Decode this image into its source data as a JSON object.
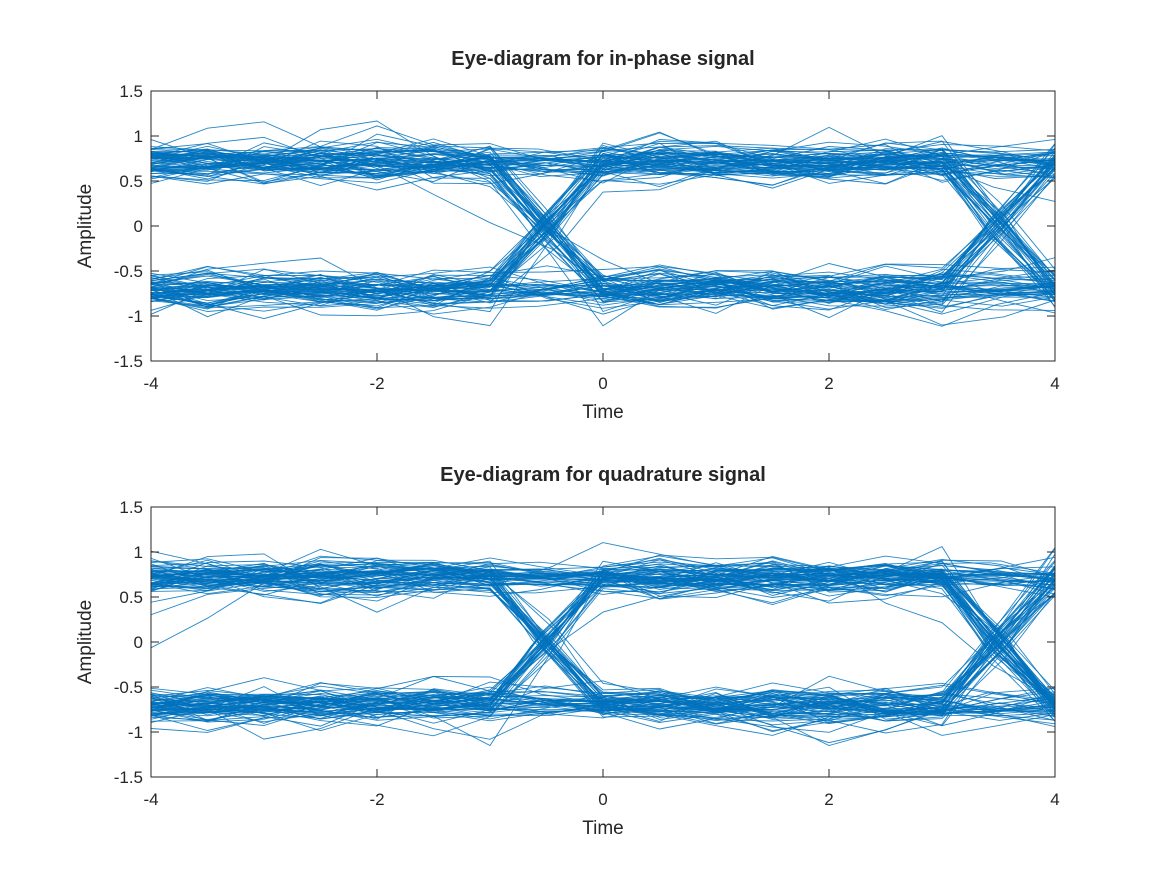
{
  "figure": {
    "background": "#ffffff"
  },
  "chart_data": [
    {
      "type": "line",
      "chart_kind": "eye-diagram",
      "title": "Eye-diagram for in-phase signal",
      "xlabel": "Time",
      "ylabel": "Amplitude",
      "xlim": [
        -4,
        4
      ],
      "ylim": [
        -1.5,
        1.5
      ],
      "xticks": [
        -4,
        -2,
        0,
        2,
        4
      ],
      "yticks": [
        -1.5,
        -1,
        -0.5,
        0,
        0.5,
        1,
        1.5
      ],
      "xtick_labels": [
        "-4",
        "-2",
        "0",
        "2",
        "4"
      ],
      "ytick_labels": [
        "-1.5",
        "-1",
        "-0.5",
        "0",
        "0.5",
        "1",
        "1.5"
      ],
      "grid": false,
      "line_color": "#0072BD",
      "symbol_times": [
        -4,
        -3,
        -2,
        -1,
        0,
        1,
        2,
        3,
        4
      ],
      "levels": [
        -0.707,
        0.707
      ],
      "level_spread": 0.18,
      "extreme_values": [
        -1.3,
        1.2
      ],
      "crossing_times": [
        -0.5,
        3.5
      ],
      "trace_count": 140,
      "seed": 11
    },
    {
      "type": "line",
      "chart_kind": "eye-diagram",
      "title": "Eye-diagram for quadrature signal",
      "xlabel": "Time",
      "ylabel": "Amplitude",
      "xlim": [
        -4,
        4
      ],
      "ylim": [
        -1.5,
        1.5
      ],
      "xticks": [
        -4,
        -2,
        0,
        2,
        4
      ],
      "yticks": [
        -1.5,
        -1,
        -0.5,
        0,
        0.5,
        1,
        1.5
      ],
      "xtick_labels": [
        "-4",
        "-2",
        "0",
        "2",
        "4"
      ],
      "ytick_labels": [
        "-1.5",
        "-1",
        "-0.5",
        "0",
        "0.5",
        "1",
        "1.5"
      ],
      "grid": false,
      "line_color": "#0072BD",
      "symbol_times": [
        -4,
        -3,
        -2,
        -1,
        0,
        1,
        2,
        3,
        4
      ],
      "levels": [
        -0.707,
        0.707
      ],
      "level_spread": 0.17,
      "extreme_values": [
        -1.15,
        1.25
      ],
      "crossing_times": [
        -0.5,
        3.5
      ],
      "trace_count": 140,
      "seed": 23
    }
  ]
}
